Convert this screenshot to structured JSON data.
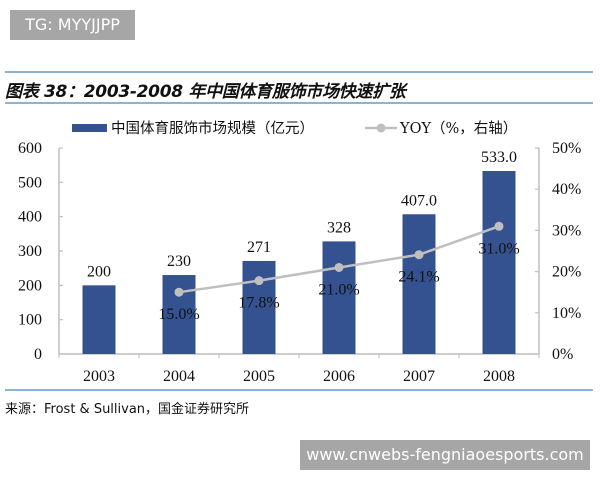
{
  "watermark_top": "TG: MYYJJPP",
  "watermark_bottom": "www.cnwebs-fengniaoesports.com",
  "figure_title": "图表 38：2003-2008 年中国体育服饰市场快速扩张",
  "source": "来源：Frost & Sullivan，国金证券研究所",
  "colors": {
    "bar": "#34528f",
    "line": "#bfbfbf",
    "axis": "#bfbfbf",
    "rule": "#8db3d3"
  },
  "chart_data": {
    "type": "bar+line",
    "title": "2003-2008 年中国体育服饰市场快速扩张",
    "categories": [
      "2003",
      "2004",
      "2005",
      "2006",
      "2007",
      "2008"
    ],
    "series": [
      {
        "name": "中国体育服饰市场规模（亿元）",
        "type": "bar",
        "axis": "left",
        "values": [
          200,
          230,
          271,
          328,
          407.0,
          533.0
        ],
        "labels": [
          "200",
          "230",
          "271",
          "328",
          "407.0",
          "533.0"
        ]
      },
      {
        "name": "YOY（%，右轴）",
        "type": "line",
        "axis": "right",
        "values": [
          null,
          15.0,
          17.8,
          21.0,
          24.1,
          31.0
        ],
        "labels": [
          null,
          "15.0%",
          "17.8%",
          "21.0%",
          "24.1%",
          "31.0%"
        ]
      }
    ],
    "left_axis": {
      "ticks": [
        "0",
        "100",
        "200",
        "300",
        "400",
        "500",
        "600"
      ],
      "ylim": [
        0,
        600
      ]
    },
    "right_axis": {
      "ticks": [
        "0%",
        "10%",
        "20%",
        "30%",
        "40%",
        "50%"
      ],
      "ylim": [
        0,
        50
      ]
    },
    "legend_position": "top",
    "grid": false
  }
}
